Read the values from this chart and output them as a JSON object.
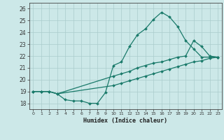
{
  "title": "",
  "xlabel": "Humidex (Indice chaleur)",
  "ylabel": "",
  "bg_color": "#cce8e8",
  "grid_color": "#aacccc",
  "line_color": "#1a7a6a",
  "ylim": [
    17.5,
    26.5
  ],
  "xlim": [
    -0.5,
    23.5
  ],
  "yticks": [
    18,
    19,
    20,
    21,
    22,
    23,
    24,
    25,
    26
  ],
  "xticks": [
    0,
    1,
    2,
    3,
    4,
    5,
    6,
    7,
    8,
    9,
    10,
    11,
    12,
    13,
    14,
    15,
    16,
    17,
    18,
    19,
    20,
    21,
    22,
    23
  ],
  "line1_x": [
    0,
    1,
    2,
    3,
    4,
    5,
    6,
    7,
    8,
    9,
    10,
    11,
    12,
    13,
    14,
    15,
    16,
    17,
    18,
    19,
    20,
    21,
    22,
    23
  ],
  "line1_y": [
    19.0,
    19.0,
    19.0,
    18.8,
    18.3,
    18.2,
    18.2,
    18.0,
    18.0,
    18.9,
    21.2,
    21.5,
    22.8,
    23.8,
    24.3,
    25.1,
    25.7,
    25.3,
    24.5,
    23.3,
    22.6,
    21.9,
    21.9,
    21.9
  ],
  "line2_x": [
    0,
    1,
    2,
    3,
    10,
    11,
    12,
    13,
    14,
    15,
    16,
    17,
    18,
    19,
    20,
    21,
    22,
    23
  ],
  "line2_y": [
    19.0,
    19.0,
    19.0,
    18.8,
    20.3,
    20.5,
    20.7,
    21.0,
    21.2,
    21.4,
    21.5,
    21.7,
    21.9,
    22.0,
    23.3,
    22.8,
    22.0,
    21.9
  ],
  "line3_x": [
    0,
    1,
    2,
    3,
    10,
    11,
    12,
    13,
    14,
    15,
    16,
    17,
    18,
    19,
    20,
    21,
    22,
    23
  ],
  "line3_y": [
    19.0,
    19.0,
    19.0,
    18.8,
    19.5,
    19.7,
    19.9,
    20.1,
    20.3,
    20.5,
    20.7,
    20.9,
    21.1,
    21.3,
    21.5,
    21.6,
    21.8,
    21.9
  ]
}
